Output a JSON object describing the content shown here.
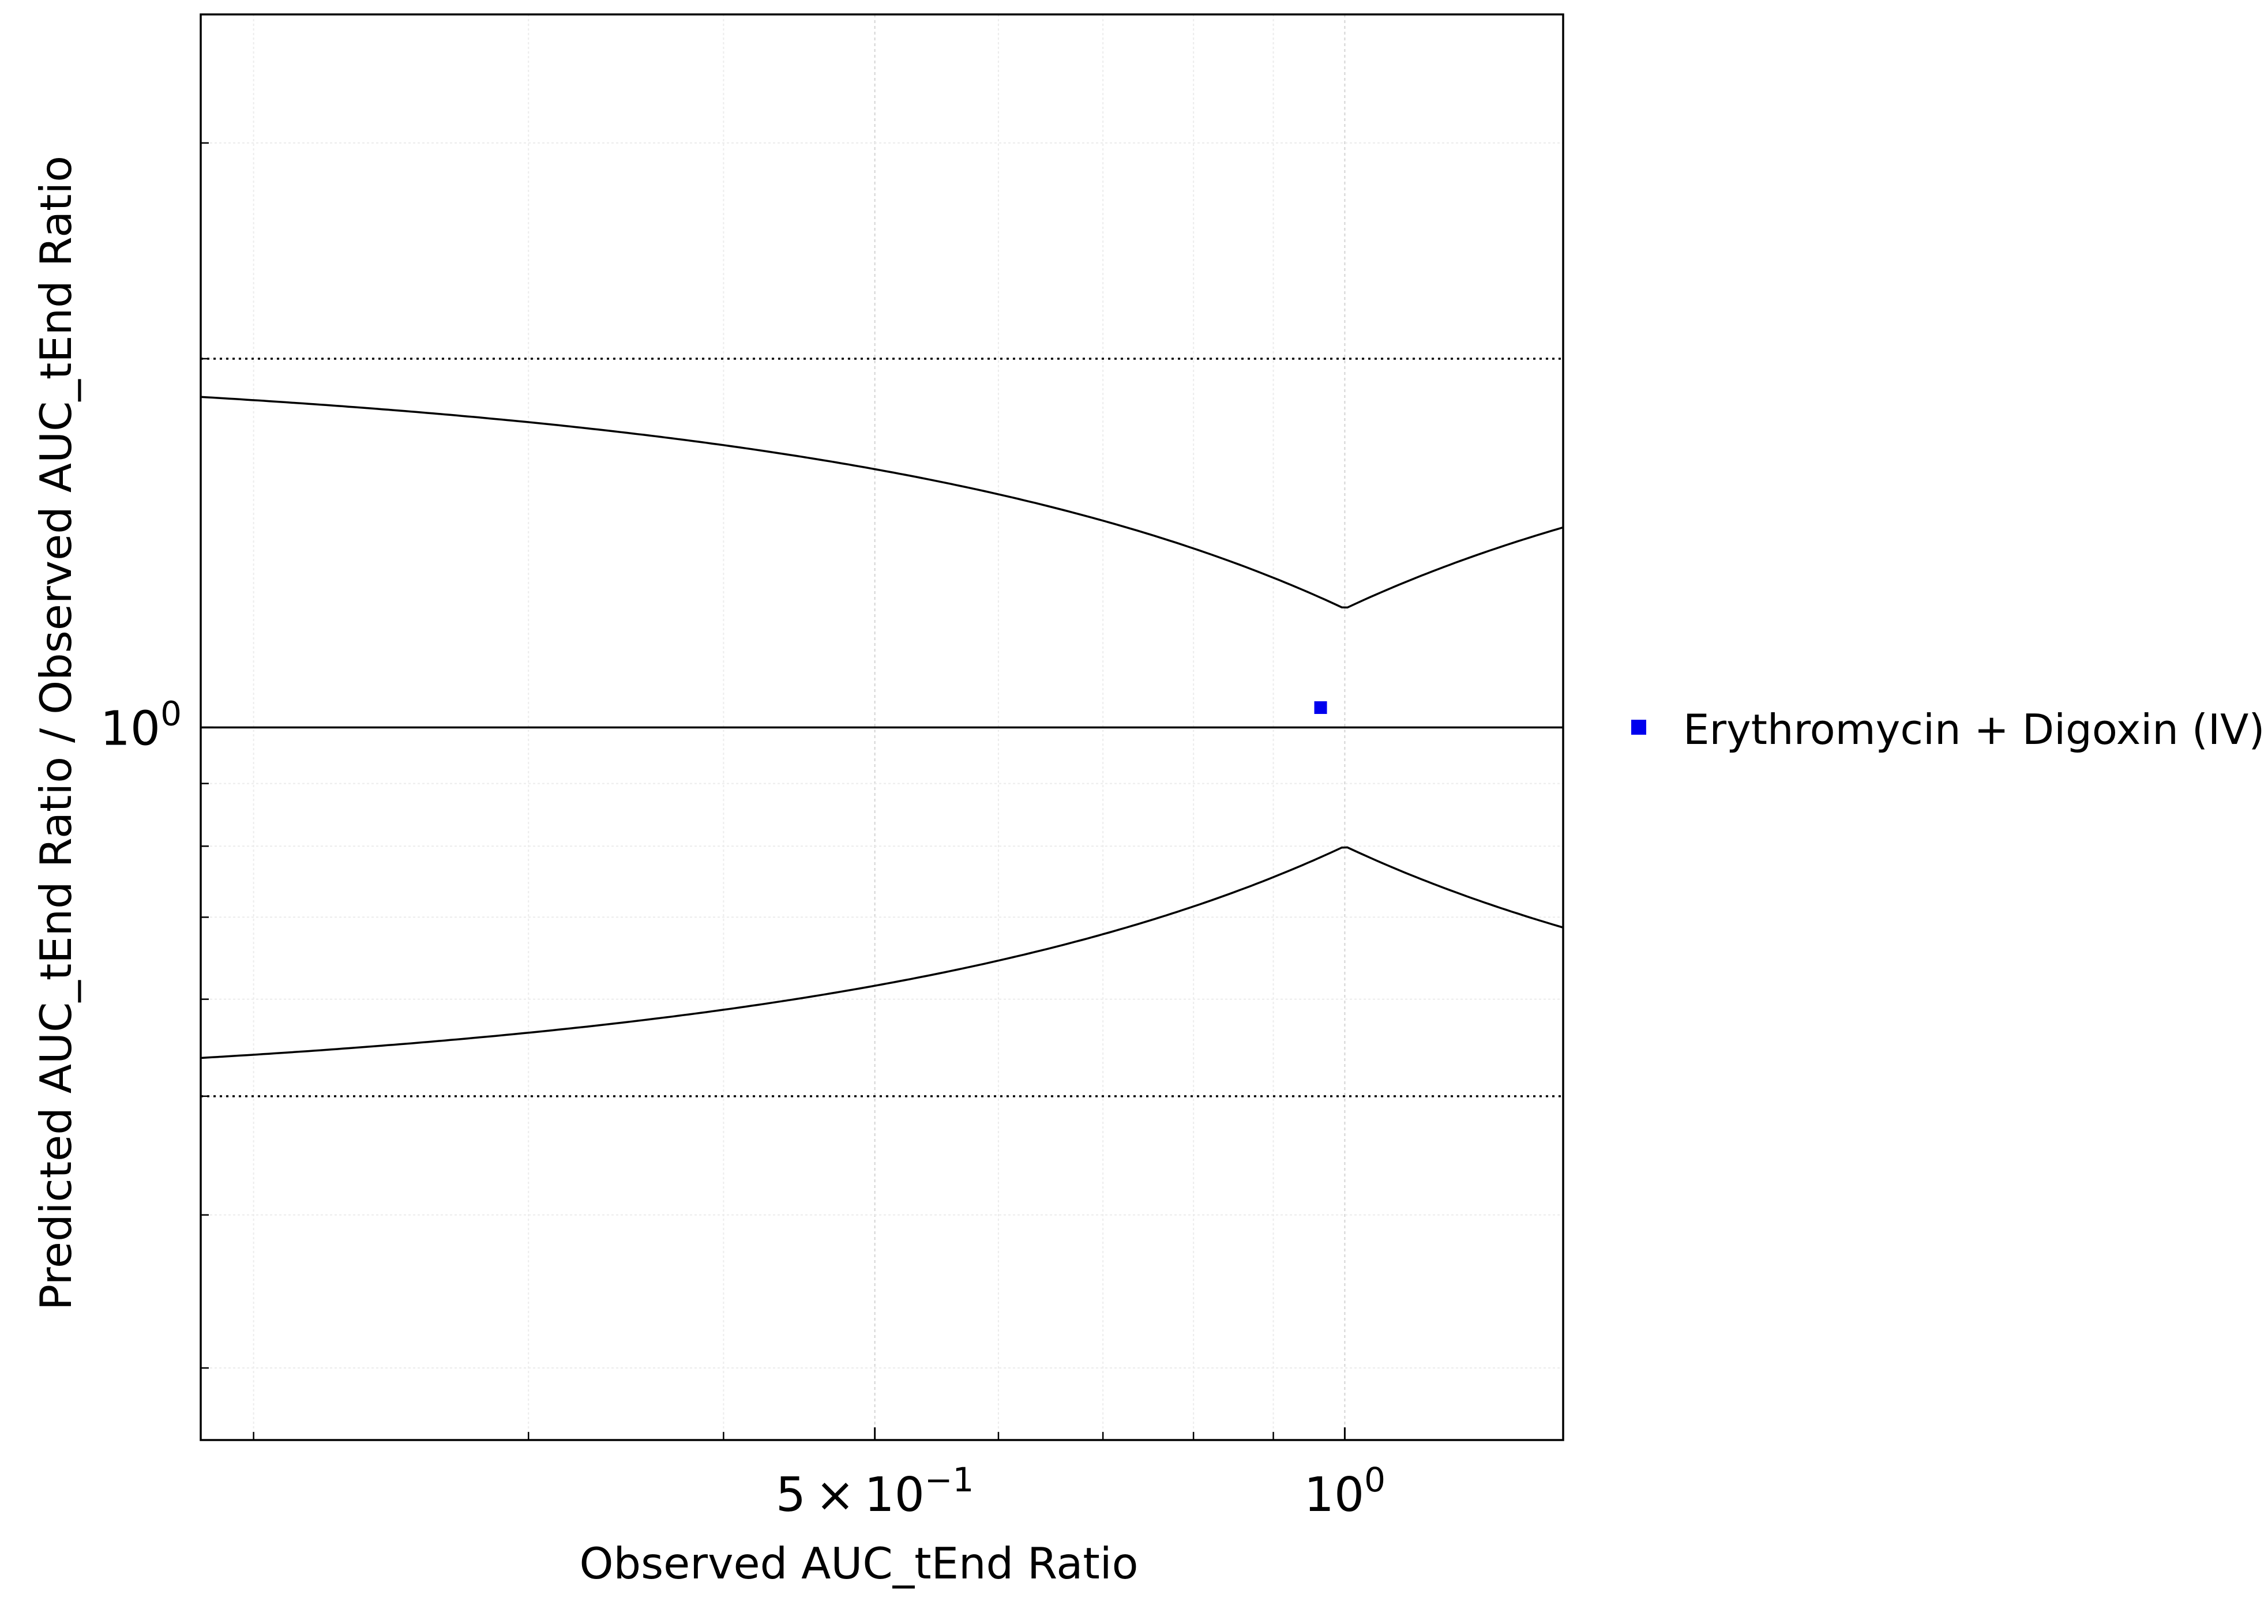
{
  "chart_data": {
    "type": "scatter",
    "title": "",
    "xlabel": "Observed  AUC_tEnd Ratio",
    "ylabel": "Predicted  AUC_tEnd Ratio / Observed  AUC_tEnd Ratio",
    "x_scale": "log",
    "y_scale": "log",
    "xlim": [
      0.185,
      1.38
    ],
    "ylim": [
      0.262,
      3.82
    ],
    "grid": true,
    "legend_position": "right",
    "x_ticks": [
      {
        "value": 0.5,
        "mantissa": "5",
        "times": "×",
        "base": "10",
        "exponent": "−1"
      },
      {
        "value": 1.0,
        "mantissa": "",
        "times": "",
        "base": "10",
        "exponent": "0"
      }
    ],
    "y_ticks": [
      {
        "value": 1.0,
        "base": "10",
        "exponent": "0"
      }
    ],
    "x_minor_ticks": [
      0.2,
      0.3,
      0.4,
      0.6,
      0.7,
      0.8,
      0.9
    ],
    "y_minor_ticks": [
      0.3,
      0.4,
      0.5,
      0.6,
      0.7,
      0.8,
      0.9,
      2,
      3
    ],
    "reference_lines": {
      "identity": 1.0,
      "fold_limits": [
        0.5,
        2.0
      ],
      "guest_delta": 1.25
    },
    "series": [
      {
        "name": "Erythromycin + Digoxin (IV)",
        "color": "#0000ee",
        "marker": "square",
        "x": [
          0.965
        ],
        "y": [
          1.038
        ]
      }
    ]
  }
}
